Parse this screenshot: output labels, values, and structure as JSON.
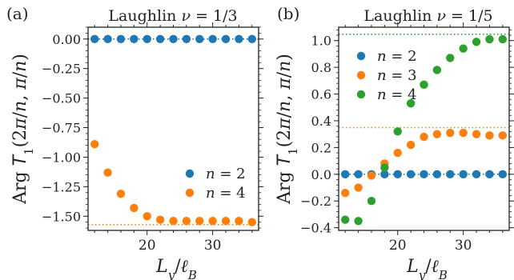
{
  "chart_data": [
    {
      "type": "scatter",
      "panel_label": "(a)",
      "title": "Laughlin ν = 1/3",
      "xlabel": "L_y/ℓ_B",
      "ylabel": "Arg T_1(2π/n, π/n)",
      "xlim": [
        11,
        37
      ],
      "ylim": [
        -1.62,
        0.1
      ],
      "xticks": [
        20,
        30
      ],
      "yticks": [
        0.0,
        -0.25,
        -0.5,
        -0.75,
        -1.0,
        -1.25,
        -1.5
      ],
      "ytick_labels": [
        "0.00",
        "−0.25",
        "−0.50",
        "−0.75",
        "−1.00",
        "−1.25",
        "−1.50"
      ],
      "legend_position": "lower-right",
      "series": [
        {
          "name": "n = 2",
          "color": "#1f77b4",
          "x": [
            12,
            14,
            16,
            18,
            20,
            22,
            24,
            26,
            28,
            30,
            32,
            34,
            36
          ],
          "y": [
            0,
            0,
            0,
            0,
            0,
            0,
            0,
            0,
            0,
            0,
            0,
            0,
            0
          ],
          "reference": 0
        },
        {
          "name": "n = 4",
          "color": "#ff7f0e",
          "x": [
            12,
            14,
            16,
            18,
            20,
            22,
            24,
            26,
            28,
            30,
            32,
            34,
            36
          ],
          "y": [
            -0.89,
            -1.13,
            -1.31,
            -1.43,
            -1.5,
            -1.53,
            -1.54,
            -1.54,
            -1.54,
            -1.54,
            -1.54,
            -1.54,
            -1.55
          ],
          "reference": -1.571
        }
      ]
    },
    {
      "type": "scatter",
      "panel_label": "(b)",
      "title": "Laughlin ν = 1/5",
      "xlabel": "L_y/ℓ_B",
      "ylabel": "Arg T_1(2π/n, π/n)",
      "xlim": [
        11,
        37
      ],
      "ylim": [
        -0.42,
        1.1
      ],
      "xticks": [
        20,
        30
      ],
      "yticks": [
        -0.4,
        -0.2,
        0.0,
        0.2,
        0.4,
        0.6,
        0.8,
        1.0
      ],
      "ytick_labels": [
        "−0.4",
        "−0.2",
        "0.0",
        "0.2",
        "0.4",
        "0.6",
        "0.8",
        "1.0"
      ],
      "legend_position": "upper-left",
      "series": [
        {
          "name": "n = 2",
          "color": "#1f77b4",
          "x": [
            12,
            14,
            16,
            18,
            20,
            22,
            24,
            26,
            28,
            30,
            32,
            34,
            36
          ],
          "y": [
            0,
            0,
            0,
            0,
            0,
            0,
            0,
            0,
            0,
            0,
            0,
            0,
            0
          ],
          "reference": 0
        },
        {
          "name": "n = 3",
          "color": "#ff7f0e",
          "x": [
            12,
            14,
            16,
            18,
            20,
            22,
            24,
            26,
            28,
            30,
            32,
            34,
            36
          ],
          "y": [
            -0.14,
            -0.1,
            -0.01,
            0.08,
            0.16,
            0.22,
            0.28,
            0.3,
            0.31,
            0.31,
            0.3,
            0.29,
            0.29
          ],
          "reference": 0.349
        },
        {
          "name": "n = 4",
          "color": "#2ca02c",
          "x": [
            12,
            14,
            16,
            18,
            20,
            22,
            24,
            26,
            28,
            30,
            32,
            34,
            36
          ],
          "y": [
            -0.34,
            -0.35,
            -0.2,
            0.05,
            0.32,
            0.53,
            0.67,
            0.78,
            0.87,
            0.94,
            0.99,
            1.01,
            1.01
          ],
          "reference": 1.047
        }
      ]
    }
  ]
}
